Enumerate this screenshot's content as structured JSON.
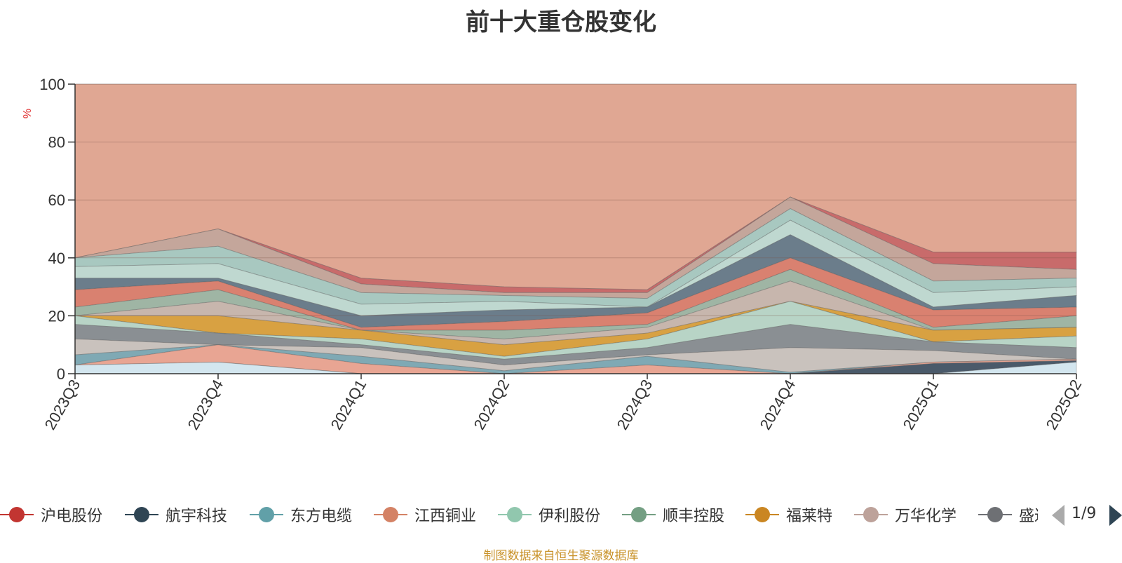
{
  "chart_data": {
    "type": "area",
    "title": "前十大重仓股变化",
    "ylabel": "%",
    "ylim": [
      0,
      100
    ],
    "yticks": [
      0,
      20,
      40,
      60,
      80,
      100
    ],
    "categories": [
      "2023Q3",
      "2023Q4",
      "2024Q1",
      "2024Q2",
      "2024Q3",
      "2024Q4",
      "2025Q1",
      "2025Q2"
    ],
    "grid": true,
    "legend": {
      "position": "bottom",
      "page": "1/9",
      "entries": [
        {
          "name": "沪电股份",
          "color": "#c23531"
        },
        {
          "name": "航宇科技",
          "color": "#2f4554"
        },
        {
          "name": "东方电缆",
          "color": "#61a0a8"
        },
        {
          "name": "江西铜业",
          "color": "#d48265"
        },
        {
          "name": "伊利股份",
          "color": "#91c7ae"
        },
        {
          "name": "顺丰控股",
          "color": "#749f83"
        },
        {
          "name": "福莱特",
          "color": "#ca8622"
        },
        {
          "name": "万华化学",
          "color": "#bda29a"
        },
        {
          "name": "盛达",
          "color": "#6e7074"
        }
      ]
    },
    "layers_top": [
      [
        3,
        4,
        0,
        0,
        0,
        0,
        0,
        4
      ],
      [
        0,
        4,
        0,
        0,
        0,
        0,
        3.5,
        4.5
      ],
      [
        3,
        10,
        3.5,
        0,
        3,
        0,
        4,
        5
      ],
      [
        6.5,
        10,
        6,
        1,
        6,
        0.5,
        4,
        5
      ],
      [
        12,
        10,
        9,
        3,
        6.5,
        9,
        8,
        5
      ],
      [
        17,
        14,
        10,
        5,
        9,
        17,
        11,
        9
      ],
      [
        20,
        14,
        12,
        6,
        12,
        25,
        11,
        13
      ],
      [
        20,
        20,
        15,
        10,
        14,
        25,
        15,
        16
      ],
      [
        20,
        25,
        15,
        12,
        16,
        32,
        15,
        16
      ],
      [
        23,
        29,
        15,
        15,
        17,
        36,
        16,
        20
      ],
      [
        29,
        32,
        16,
        18,
        21,
        40,
        22,
        23
      ],
      [
        33,
        33,
        20,
        22,
        23,
        48,
        23,
        27
      ],
      [
        37,
        38,
        24,
        25,
        23,
        53,
        28,
        30
      ],
      [
        40,
        44,
        28,
        27,
        26,
        57,
        32,
        33
      ],
      [
        40,
        50,
        31,
        28,
        28,
        61,
        38,
        36
      ],
      [
        40,
        50,
        33,
        30,
        29,
        61,
        42,
        42
      ],
      [
        100,
        100,
        100,
        100,
        100,
        100,
        100,
        100
      ]
    ],
    "layer_colors": [
      "#d3e6ef",
      "#4a5a6a",
      "#e8a593",
      "#7fa9b4",
      "#c9c2bd",
      "#8a8f93",
      "#b8d4c6",
      "#d8a142",
      "#c7b6ad",
      "#9fb5a4",
      "#d98170",
      "#6b7d8b",
      "#bfd8d0",
      "#a8c8c0",
      "#c4a69b",
      "#c86b6b",
      "#e0a793"
    ],
    "source": "制图数据来自恒生聚源数据库"
  }
}
